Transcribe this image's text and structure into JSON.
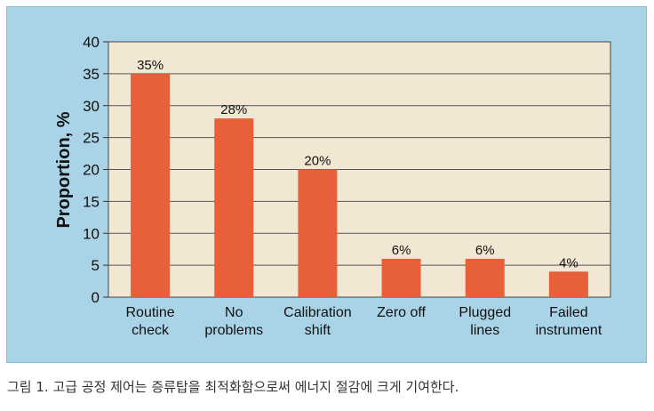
{
  "caption": "그림 1. 고급 공정 제어는 증류탑을 최적화함으로써 에너지 절감에 크게 기여한다.",
  "colors": {
    "panel_bg": "#a9d3e6",
    "plot_bg": "#f1e7d3",
    "bar": "#e8603a",
    "grid": "#555555",
    "text": "#111111"
  },
  "chart_data": {
    "type": "bar",
    "title": "",
    "xlabel": "",
    "ylabel": "Proportion, %",
    "ylim": [
      0,
      40
    ],
    "yticks": [
      0,
      5,
      10,
      15,
      20,
      25,
      30,
      35,
      40
    ],
    "grid": true,
    "categories": [
      [
        "Routine",
        "check"
      ],
      [
        "No",
        "problems"
      ],
      [
        "Calibration",
        "shift"
      ],
      [
        "Zero off"
      ],
      [
        "Plugged",
        "lines"
      ],
      [
        "Failed",
        "instrument"
      ]
    ],
    "values": [
      35,
      28,
      20,
      6,
      6,
      4
    ],
    "data_labels": [
      "35%",
      "28%",
      "20%",
      "6%",
      "6%",
      "4%"
    ]
  }
}
